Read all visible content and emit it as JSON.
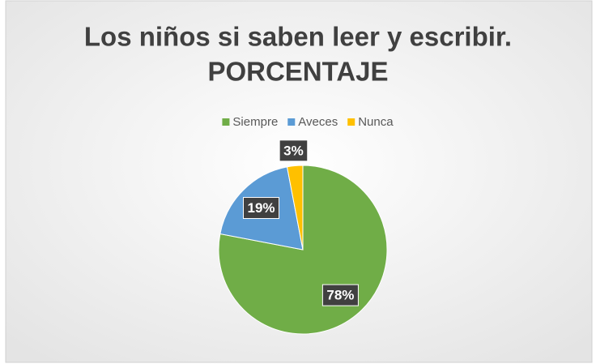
{
  "chart_data": {
    "type": "pie",
    "title": [
      "Los niños si saben leer y escribir.",
      "PORCENTAJE"
    ],
    "categories": [
      "Siempre",
      "Aveces",
      "Nunca"
    ],
    "values": [
      78,
      19,
      3
    ],
    "value_labels": [
      "78%",
      "19%",
      "3%"
    ],
    "colors": [
      "#70ad47",
      "#5b9bd5",
      "#ffc000"
    ],
    "legend": "top"
  }
}
